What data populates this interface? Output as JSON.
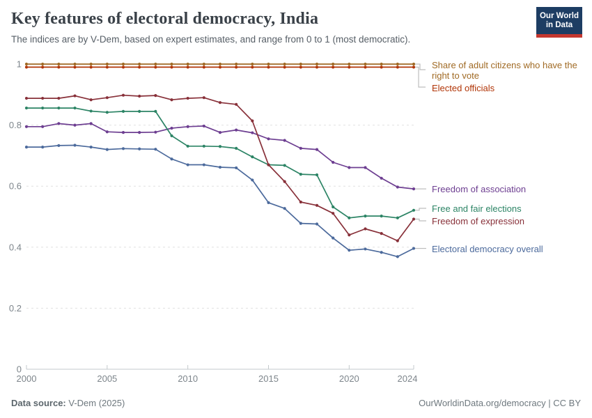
{
  "header": {
    "title": "Key features of electoral democracy, India",
    "subtitle": "The indices are by V-Dem, based on expert estimates, and range from 0 to 1 (most democratic)."
  },
  "logo": {
    "line1": "Our World",
    "line2": "in Data"
  },
  "footer": {
    "datasource_label": "Data source:",
    "datasource_value": " V-Dem (2025)",
    "attribution": "OurWorldinData.org/democracy | CC BY"
  },
  "chart_data": {
    "type": "line",
    "x": [
      2000,
      2001,
      2002,
      2003,
      2004,
      2005,
      2006,
      2007,
      2008,
      2009,
      2010,
      2011,
      2012,
      2013,
      2014,
      2015,
      2016,
      2017,
      2018,
      2019,
      2020,
      2021,
      2022,
      2023,
      2024
    ],
    "xticks": [
      2000,
      2005,
      2010,
      2015,
      2020,
      2024
    ],
    "yticks": [
      0,
      0.2,
      0.4,
      0.6,
      0.8,
      1
    ],
    "yticklabels": [
      "0",
      "0.2",
      "0.4",
      "0.6",
      "0.8",
      "1"
    ],
    "ylim": [
      0,
      1
    ],
    "xlim": [
      2000,
      2024
    ],
    "grid": "horizontal-dashed",
    "legend_position": "right-of-lines",
    "series": [
      {
        "name": "Share of adult citizens who have the right to vote",
        "color": "#A06A24",
        "values": [
          1,
          1,
          1,
          1,
          1,
          1,
          1,
          1,
          1,
          1,
          1,
          1,
          1,
          1,
          1,
          1,
          1,
          1,
          1,
          1,
          1,
          1,
          1,
          1,
          1
        ]
      },
      {
        "name": "Elected officials",
        "color": "#B13507",
        "values": [
          0.99,
          0.99,
          0.99,
          0.99,
          0.99,
          0.99,
          0.99,
          0.99,
          0.99,
          0.99,
          0.99,
          0.99,
          0.99,
          0.99,
          0.99,
          0.99,
          0.99,
          0.99,
          0.99,
          0.99,
          0.99,
          0.99,
          0.99,
          0.99,
          0.99
        ]
      },
      {
        "name": "Freedom of association",
        "color": "#6D3E91",
        "values": [
          0.795,
          0.795,
          0.805,
          0.8,
          0.805,
          0.778,
          0.776,
          0.776,
          0.777,
          0.79,
          0.795,
          0.797,
          0.776,
          0.784,
          0.775,
          0.755,
          0.75,
          0.724,
          0.72,
          0.678,
          0.661,
          0.661,
          0.626,
          0.597,
          0.591
        ]
      },
      {
        "name": "Free and fair elections",
        "color": "#2C8465",
        "values": [
          0.856,
          0.856,
          0.856,
          0.856,
          0.846,
          0.842,
          0.845,
          0.845,
          0.845,
          0.765,
          0.731,
          0.731,
          0.73,
          0.724,
          0.696,
          0.67,
          0.668,
          0.639,
          0.637,
          0.532,
          0.496,
          0.502,
          0.502,
          0.496,
          0.521
        ]
      },
      {
        "name": "Freedom of expression",
        "color": "#883039",
        "values": [
          0.888,
          0.888,
          0.888,
          0.896,
          0.883,
          0.89,
          0.898,
          0.895,
          0.897,
          0.883,
          0.888,
          0.89,
          0.874,
          0.868,
          0.814,
          0.67,
          0.615,
          0.548,
          0.537,
          0.511,
          0.44,
          0.46,
          0.445,
          0.421,
          0.492
        ]
      },
      {
        "name": "Electoral democracy overall",
        "color": "#4C6A9C",
        "values": [
          0.728,
          0.728,
          0.733,
          0.734,
          0.728,
          0.72,
          0.723,
          0.722,
          0.721,
          0.689,
          0.67,
          0.67,
          0.662,
          0.66,
          0.62,
          0.546,
          0.527,
          0.478,
          0.476,
          0.43,
          0.39,
          0.394,
          0.383,
          0.369,
          0.396
        ]
      }
    ]
  }
}
